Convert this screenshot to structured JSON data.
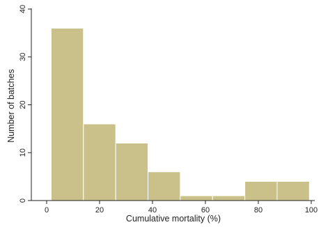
{
  "chart_data": {
    "type": "bar",
    "subtype": "histogram",
    "title": "",
    "xlabel": "Cumulative mortality (%)",
    "ylabel": "Number of batches",
    "xlim": [
      0,
      100
    ],
    "ylim": [
      0,
      40
    ],
    "x_ticks": [
      0,
      20,
      40,
      60,
      80,
      100
    ],
    "y_ticks": [
      0,
      10,
      20,
      30,
      40
    ],
    "bins": [
      {
        "start": 1.7,
        "end": 13.9,
        "count": 36
      },
      {
        "start": 13.9,
        "end": 26.1,
        "count": 16
      },
      {
        "start": 26.1,
        "end": 38.3,
        "count": 12
      },
      {
        "start": 38.3,
        "end": 50.5,
        "count": 6
      },
      {
        "start": 50.5,
        "end": 62.7,
        "count": 1
      },
      {
        "start": 62.7,
        "end": 74.9,
        "count": 1
      },
      {
        "start": 74.9,
        "end": 87.1,
        "count": 4
      },
      {
        "start": 87.1,
        "end": 99.3,
        "count": 4
      }
    ],
    "grid": false,
    "legend": "none",
    "bar_fill": "#c9c08a",
    "bar_edge": "#ffffff"
  }
}
